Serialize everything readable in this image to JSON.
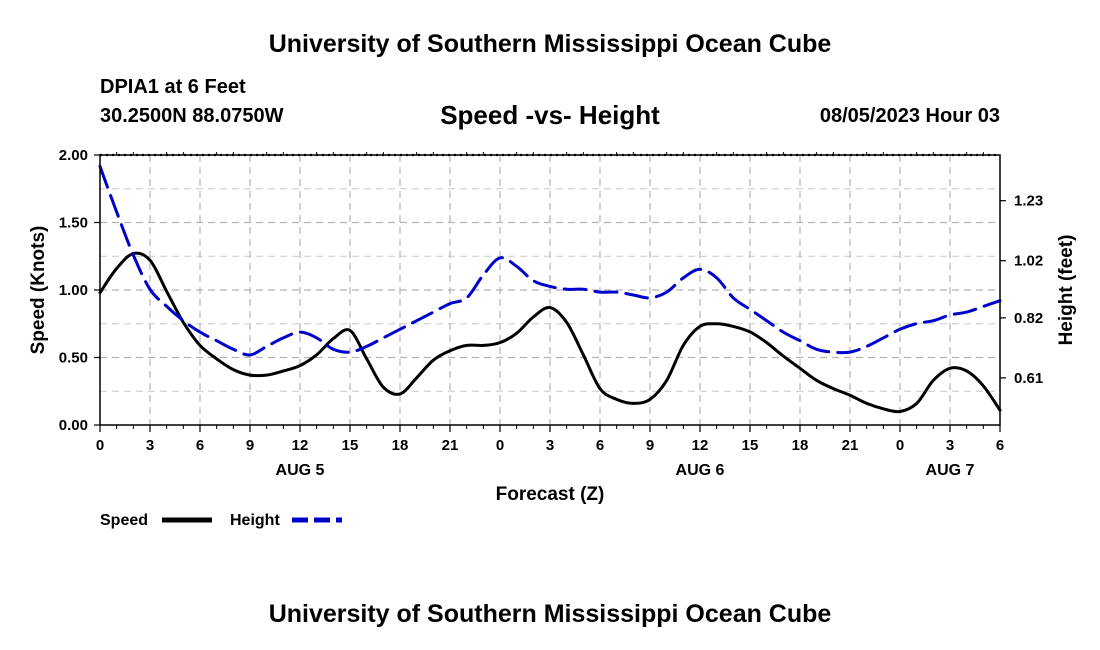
{
  "header": {
    "title": "University of Southern Mississippi Ocean Cube",
    "station": "DPIA1 at 6 Feet",
    "coords": "30.2500N  88.0750W",
    "date": "08/05/2023 Hour 03"
  },
  "footer": {
    "title": "University of Southern Mississippi Ocean Cube"
  },
  "chart_data": {
    "type": "line",
    "title": "Speed -vs- Height",
    "xlabel": "Forecast (Z)",
    "ylabel_left": "Speed (Knots)",
    "ylabel_right": "Height (feet)",
    "x_range_hours": [
      0,
      54
    ],
    "x_ticks": [
      {
        "h": 0,
        "label": "0"
      },
      {
        "h": 3,
        "label": "3"
      },
      {
        "h": 6,
        "label": "6"
      },
      {
        "h": 9,
        "label": "9"
      },
      {
        "h": 12,
        "label": "12"
      },
      {
        "h": 15,
        "label": "15"
      },
      {
        "h": 18,
        "label": "18"
      },
      {
        "h": 21,
        "label": "21"
      },
      {
        "h": 24,
        "label": "0"
      },
      {
        "h": 27,
        "label": "3"
      },
      {
        "h": 30,
        "label": "6"
      },
      {
        "h": 33,
        "label": "9"
      },
      {
        "h": 36,
        "label": "12"
      },
      {
        "h": 39,
        "label": "15"
      },
      {
        "h": 42,
        "label": "18"
      },
      {
        "h": 45,
        "label": "21"
      },
      {
        "h": 48,
        "label": "0"
      },
      {
        "h": 51,
        "label": "3"
      },
      {
        "h": 54,
        "label": "6"
      }
    ],
    "day_labels": [
      {
        "h": 12,
        "label": "AUG 5"
      },
      {
        "h": 36,
        "label": "AUG 6"
      },
      {
        "h": 51,
        "label": "AUG 7"
      }
    ],
    "y_left": {
      "range": [
        0,
        2
      ],
      "ticks": [
        "0.00",
        "0.50",
        "1.00",
        "1.50",
        "2.00"
      ]
    },
    "y_right": {
      "range": [
        0.445,
        1.39
      ],
      "ticks": [
        "0.61",
        "0.82",
        "1.02",
        "1.23"
      ]
    },
    "grid": true,
    "legend_position": "bottom-left",
    "series": [
      {
        "name": "Speed",
        "axis": "left",
        "color": "#000000",
        "style": "solid",
        "points": [
          [
            0,
            0.98
          ],
          [
            1,
            1.16
          ],
          [
            2,
            1.27
          ],
          [
            3,
            1.22
          ],
          [
            4,
            0.99
          ],
          [
            5,
            0.76
          ],
          [
            6,
            0.59
          ],
          [
            7,
            0.49
          ],
          [
            8,
            0.41
          ],
          [
            9,
            0.37
          ],
          [
            10,
            0.37
          ],
          [
            11,
            0.4
          ],
          [
            12,
            0.44
          ],
          [
            13,
            0.52
          ],
          [
            14,
            0.64
          ],
          [
            15,
            0.7
          ],
          [
            16,
            0.49
          ],
          [
            17,
            0.28
          ],
          [
            18,
            0.23
          ],
          [
            19,
            0.35
          ],
          [
            20,
            0.48
          ],
          [
            21,
            0.55
          ],
          [
            22,
            0.59
          ],
          [
            23,
            0.59
          ],
          [
            24,
            0.61
          ],
          [
            25,
            0.68
          ],
          [
            26,
            0.8
          ],
          [
            27,
            0.87
          ],
          [
            28,
            0.76
          ],
          [
            29,
            0.52
          ],
          [
            30,
            0.27
          ],
          [
            31,
            0.19
          ],
          [
            32,
            0.16
          ],
          [
            33,
            0.19
          ],
          [
            34,
            0.33
          ],
          [
            35,
            0.59
          ],
          [
            36,
            0.73
          ],
          [
            37,
            0.75
          ],
          [
            38,
            0.73
          ],
          [
            39,
            0.69
          ],
          [
            40,
            0.61
          ],
          [
            41,
            0.51
          ],
          [
            42,
            0.42
          ],
          [
            43,
            0.33
          ],
          [
            44,
            0.27
          ],
          [
            45,
            0.22
          ],
          [
            46,
            0.16
          ],
          [
            47,
            0.12
          ],
          [
            48,
            0.1
          ],
          [
            49,
            0.16
          ],
          [
            50,
            0.33
          ],
          [
            51,
            0.42
          ],
          [
            52,
            0.4
          ],
          [
            53,
            0.29
          ],
          [
            54,
            0.11
          ]
        ]
      },
      {
        "name": "Height",
        "axis": "right",
        "color": "#0000cc",
        "style": "dashed",
        "points": [
          [
            0,
            1.35
          ],
          [
            1,
            1.19
          ],
          [
            2,
            1.04
          ],
          [
            3,
            0.92
          ],
          [
            4,
            0.86
          ],
          [
            5,
            0.81
          ],
          [
            6,
            0.77
          ],
          [
            7,
            0.74
          ],
          [
            8,
            0.71
          ],
          [
            9,
            0.69
          ],
          [
            10,
            0.72
          ],
          [
            11,
            0.75
          ],
          [
            12,
            0.77
          ],
          [
            13,
            0.75
          ],
          [
            14,
            0.71
          ],
          [
            15,
            0.7
          ],
          [
            16,
            0.72
          ],
          [
            17,
            0.75
          ],
          [
            18,
            0.78
          ],
          [
            19,
            0.81
          ],
          [
            20,
            0.84
          ],
          [
            21,
            0.87
          ],
          [
            22,
            0.89
          ],
          [
            23,
            0.97
          ],
          [
            24,
            1.03
          ],
          [
            25,
            1.0
          ],
          [
            26,
            0.95
          ],
          [
            27,
            0.93
          ],
          [
            28,
            0.92
          ],
          [
            29,
            0.92
          ],
          [
            30,
            0.91
          ],
          [
            31,
            0.91
          ],
          [
            32,
            0.9
          ],
          [
            33,
            0.89
          ],
          [
            34,
            0.91
          ],
          [
            35,
            0.96
          ],
          [
            36,
            0.99
          ],
          [
            37,
            0.96
          ],
          [
            38,
            0.89
          ],
          [
            39,
            0.85
          ],
          [
            40,
            0.81
          ],
          [
            41,
            0.77
          ],
          [
            42,
            0.74
          ],
          [
            43,
            0.71
          ],
          [
            44,
            0.7
          ],
          [
            45,
            0.7
          ],
          [
            46,
            0.72
          ],
          [
            47,
            0.75
          ],
          [
            48,
            0.78
          ],
          [
            49,
            0.8
          ],
          [
            50,
            0.81
          ],
          [
            51,
            0.83
          ],
          [
            52,
            0.84
          ],
          [
            53,
            0.86
          ],
          [
            54,
            0.88
          ]
        ]
      }
    ]
  }
}
